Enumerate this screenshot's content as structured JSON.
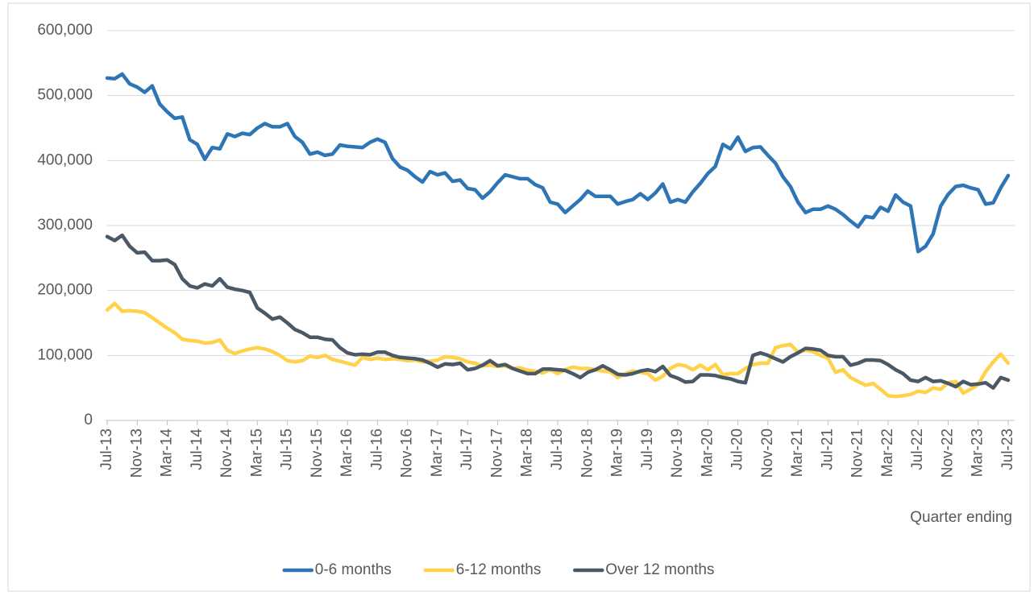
{
  "chart_data": {
    "type": "line",
    "x_label": "Quarter ending",
    "categories": [
      "Jul-13",
      null,
      null,
      null,
      "Nov-13",
      null,
      null,
      null,
      "Mar-14",
      null,
      null,
      null,
      "Jul-14",
      null,
      null,
      null,
      "Nov-14",
      null,
      null,
      null,
      "Mar-15",
      null,
      null,
      null,
      "Jul-15",
      null,
      null,
      null,
      "Nov-15",
      null,
      null,
      null,
      "Mar-16",
      null,
      null,
      null,
      "Jul-16",
      null,
      null,
      null,
      "Nov-16",
      null,
      null,
      null,
      "Mar-17",
      null,
      null,
      null,
      "Jul-17",
      null,
      null,
      null,
      "Nov-17",
      null,
      null,
      null,
      "Mar-18",
      null,
      null,
      null,
      "Jul-18",
      null,
      null,
      null,
      "Nov-18",
      null,
      null,
      null,
      "Mar-19",
      null,
      null,
      null,
      "Jul-19",
      null,
      null,
      null,
      "Nov-19",
      null,
      null,
      null,
      "Mar-20",
      null,
      null,
      null,
      "Jul-20",
      null,
      null,
      null,
      "Nov-20",
      null,
      null,
      null,
      "Mar-21",
      null,
      null,
      null,
      "Jul-21",
      null,
      null,
      null,
      "Nov-21",
      null,
      null,
      null,
      "Mar-22",
      null,
      null,
      null,
      "Jul-22",
      null,
      null,
      null,
      "Nov-22",
      null,
      null,
      null,
      "Mar-23",
      null,
      null,
      null,
      "Jul-23"
    ],
    "series": [
      {
        "name": "0-6 months",
        "color": "#2e75b6",
        "values": [
          527000,
          526000,
          533000,
          518000,
          513000,
          505000,
          515000,
          487000,
          475000,
          465000,
          467000,
          432000,
          425000,
          402000,
          420000,
          418000,
          441000,
          437000,
          442000,
          440000,
          450000,
          457000,
          452000,
          452000,
          457000,
          437000,
          428000,
          410000,
          413000,
          408000,
          410000,
          424000,
          422000,
          421000,
          420000,
          428000,
          433000,
          428000,
          403000,
          390000,
          385000,
          375000,
          367000,
          383000,
          378000,
          381000,
          368000,
          370000,
          357000,
          355000,
          342000,
          352000,
          366000,
          378000,
          375000,
          372000,
          372000,
          363000,
          358000,
          336000,
          333000,
          320000,
          330000,
          340000,
          353000,
          345000,
          345000,
          345000,
          333000,
          337000,
          340000,
          349000,
          340000,
          350000,
          364000,
          336000,
          340000,
          336000,
          352000,
          365000,
          380000,
          391000,
          425000,
          418000,
          436000,
          414000,
          420000,
          421000,
          408000,
          396000,
          375000,
          360000,
          336000,
          320000,
          325000,
          325000,
          330000,
          325000,
          317000,
          307000,
          298000,
          314000,
          312000,
          328000,
          322000,
          347000,
          336000,
          330000,
          260000,
          268000,
          287000,
          330000,
          348000,
          360000,
          362000,
          358000,
          355000,
          333000,
          335000,
          358000,
          377000
        ]
      },
      {
        "name": "6-12 months",
        "color": "#ffd24a",
        "values": [
          170000,
          180000,
          168000,
          169000,
          168000,
          166000,
          158000,
          150000,
          142000,
          135000,
          125000,
          123000,
          122000,
          119000,
          120000,
          124000,
          108000,
          103000,
          107000,
          110000,
          112000,
          110000,
          106000,
          100000,
          92000,
          90000,
          92000,
          99000,
          97000,
          100000,
          94000,
          91000,
          88000,
          85000,
          97000,
          94000,
          96000,
          94000,
          95000,
          94000,
          92000,
          93000,
          90000,
          91000,
          93000,
          98000,
          97000,
          95000,
          90000,
          88000,
          84000,
          85000,
          83000,
          84000,
          80000,
          81000,
          77000,
          76000,
          73000,
          78000,
          72000,
          78000,
          82000,
          80000,
          80000,
          78000,
          76000,
          75000,
          66000,
          72000,
          76000,
          74000,
          72000,
          62000,
          68000,
          80000,
          86000,
          84000,
          78000,
          85000,
          78000,
          86000,
          70000,
          72000,
          72000,
          80000,
          86000,
          88000,
          88000,
          112000,
          115000,
          117000,
          105000,
          108000,
          106000,
          100000,
          96000,
          74000,
          78000,
          66000,
          60000,
          54000,
          57000,
          48000,
          38000,
          37000,
          38000,
          40000,
          45000,
          43000,
          50000,
          48000,
          58000,
          60000,
          42000,
          48000,
          55000,
          75000,
          90000,
          102000,
          88000
        ]
      },
      {
        "name": "Over 12 months",
        "color": "#4b5865",
        "values": [
          283000,
          277000,
          285000,
          268000,
          258000,
          259000,
          246000,
          246000,
          247000,
          240000,
          218000,
          207000,
          204000,
          210000,
          207000,
          218000,
          205000,
          202000,
          200000,
          197000,
          173000,
          165000,
          156000,
          159000,
          150000,
          140000,
          135000,
          128000,
          128000,
          125000,
          124000,
          112000,
          104000,
          101000,
          102000,
          101000,
          105000,
          105000,
          100000,
          97000,
          96000,
          95000,
          93000,
          88000,
          82000,
          87000,
          86000,
          88000,
          78000,
          80000,
          85000,
          92000,
          84000,
          86000,
          80000,
          76000,
          72000,
          72000,
          79000,
          79000,
          78000,
          77000,
          72000,
          66000,
          74000,
          78000,
          84000,
          78000,
          71000,
          70000,
          72000,
          76000,
          78000,
          75000,
          83000,
          69000,
          65000,
          59000,
          60000,
          70000,
          70000,
          69000,
          66000,
          64000,
          60000,
          58000,
          100000,
          104000,
          100000,
          95000,
          90000,
          98000,
          104000,
          111000,
          110000,
          108000,
          100000,
          98000,
          98000,
          85000,
          88000,
          93000,
          93000,
          92000,
          86000,
          78000,
          72000,
          62000,
          60000,
          66000,
          60000,
          61000,
          57000,
          52000,
          60000,
          55000,
          56000,
          58000,
          50000,
          66000,
          62000
        ]
      }
    ],
    "ylim": [
      0,
      600000
    ],
    "yticks": [
      0,
      {
        "value": 100000,
        "label": "100,000"
      },
      {
        "value": 200000,
        "label": "200,000"
      },
      {
        "value": 300000,
        "label": "300,000"
      },
      {
        "value": 400000,
        "label": "400,000"
      },
      {
        "value": 500000,
        "label": "500,000"
      },
      {
        "value": 600000,
        "label": "600,000"
      }
    ],
    "grid": true,
    "legend": "bottom"
  }
}
